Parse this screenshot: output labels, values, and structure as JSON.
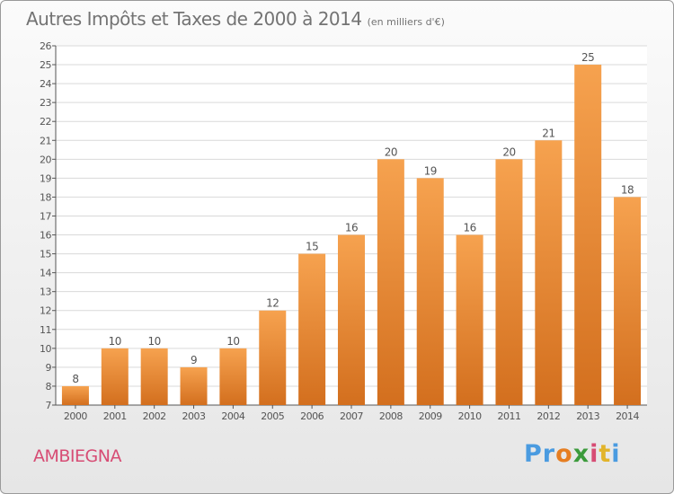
{
  "header": {
    "title": "Autres Impôts et Taxes de 2000 à 2014",
    "unit": "(en milliers d'€)"
  },
  "footer": {
    "commune": "AMBIEGNA",
    "brand": "Proxiti",
    "brand_colors": [
      "#4a9be0",
      "#4a9be0",
      "#e67e22",
      "#3c9b3c",
      "#d74c74",
      "#e2b42b",
      "#4a9be0"
    ]
  },
  "chart_data": {
    "type": "bar",
    "categories": [
      "2000",
      "2001",
      "2002",
      "2003",
      "2004",
      "2005",
      "2006",
      "2007",
      "2008",
      "2009",
      "2010",
      "2011",
      "2012",
      "2013",
      "2014"
    ],
    "values": [
      8,
      10,
      10,
      9,
      10,
      12,
      15,
      16,
      20,
      19,
      16,
      20,
      21,
      25,
      18
    ],
    "ylim": [
      7,
      26
    ],
    "yticks": [
      7,
      8,
      9,
      10,
      11,
      12,
      13,
      14,
      15,
      16,
      17,
      18,
      19,
      20,
      21,
      22,
      23,
      24,
      25,
      26
    ],
    "grid": true,
    "bar_color_top": "#f6a24f",
    "bar_color_bottom": "#d36f1e"
  }
}
